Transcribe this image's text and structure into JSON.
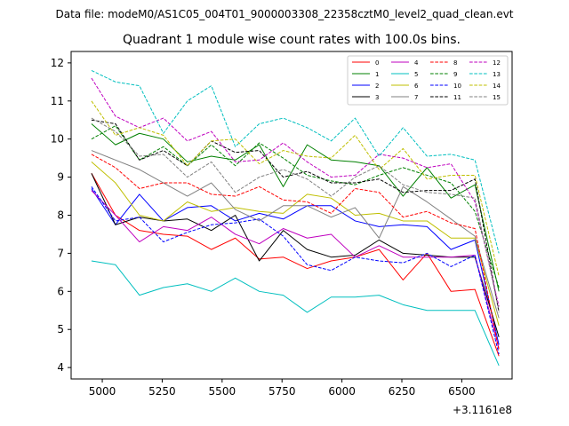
{
  "figure": {
    "suptitle": "Data file: modeM0/AS1C05_004T01_9000003308_22358cztM0_level2_quad_clean.evt",
    "x_offset_label": "+3.1161e8"
  },
  "chart_data": {
    "type": "line",
    "title": "Quadrant 1 module wise count rates with 100.0s bins.",
    "xlabel": "",
    "ylabel": "",
    "x_offset": 311610000,
    "xlim": [
      4870,
      6710
    ],
    "ylim": [
      3.7,
      12.3
    ],
    "xticks": [
      5000,
      5250,
      5500,
      5750,
      6000,
      6250,
      6500
    ],
    "yticks": [
      4,
      5,
      6,
      7,
      8,
      9,
      10,
      11,
      12
    ],
    "grid": false,
    "legend": "top-right",
    "x": [
      4955,
      5055,
      5155,
      5255,
      5355,
      5455,
      5555,
      5655,
      5755,
      5855,
      5955,
      6055,
      6155,
      6255,
      6355,
      6455,
      6555,
      6655
    ],
    "series": [
      {
        "name": "0",
        "color": "#ff0000",
        "dash": "solid",
        "values": [
          9.1,
          8.0,
          7.6,
          7.5,
          7.45,
          7.1,
          7.4,
          6.85,
          6.9,
          6.6,
          6.8,
          6.9,
          7.1,
          6.3,
          7.0,
          6.0,
          6.05,
          4.3
        ]
      },
      {
        "name": "1",
        "color": "#008000",
        "dash": "solid",
        "values": [
          10.4,
          9.85,
          10.15,
          10.0,
          9.4,
          9.55,
          9.45,
          9.85,
          8.75,
          9.85,
          9.45,
          9.4,
          9.3,
          8.5,
          9.25,
          8.45,
          8.8,
          6.0
        ]
      },
      {
        "name": "2",
        "color": "#0000ff",
        "dash": "solid",
        "values": [
          8.7,
          7.75,
          8.55,
          7.85,
          8.2,
          8.25,
          7.85,
          8.05,
          7.9,
          8.25,
          8.25,
          7.85,
          7.7,
          7.75,
          7.7,
          7.1,
          7.35,
          4.6
        ]
      },
      {
        "name": "3",
        "color": "#000000",
        "dash": "solid",
        "values": [
          9.1,
          7.75,
          7.95,
          7.85,
          7.9,
          7.6,
          8.0,
          6.8,
          7.6,
          7.1,
          6.9,
          6.95,
          7.35,
          7.0,
          6.95,
          6.9,
          6.9,
          4.8
        ]
      },
      {
        "name": "4",
        "color": "#bf00bf",
        "dash": "solid",
        "values": [
          8.65,
          8.0,
          7.3,
          7.7,
          7.6,
          7.95,
          7.5,
          7.25,
          7.65,
          7.4,
          7.5,
          6.9,
          7.2,
          6.9,
          6.9,
          6.9,
          6.95,
          4.5
        ]
      },
      {
        "name": "5",
        "color": "#00bfbf",
        "dash": "solid",
        "values": [
          6.8,
          6.7,
          5.9,
          6.1,
          6.2,
          6.0,
          6.35,
          6.0,
          5.9,
          5.45,
          5.85,
          5.85,
          5.9,
          5.65,
          5.5,
          5.5,
          5.5,
          4.05
        ]
      },
      {
        "name": "6",
        "color": "#bfbf00",
        "dash": "solid",
        "values": [
          9.4,
          8.85,
          8.0,
          7.85,
          8.35,
          8.1,
          8.2,
          8.1,
          8.05,
          8.55,
          8.45,
          8.0,
          8.05,
          7.85,
          7.85,
          7.4,
          7.4,
          5.1
        ]
      },
      {
        "name": "7",
        "color": "#808080",
        "dash": "solid",
        "values": [
          9.7,
          9.45,
          9.2,
          8.85,
          8.5,
          8.85,
          8.15,
          7.85,
          8.25,
          8.25,
          7.95,
          8.2,
          7.4,
          8.75,
          8.35,
          7.9,
          7.45,
          5.3
        ]
      },
      {
        "name": "8",
        "color": "#ff0000",
        "dash": "dashed",
        "values": [
          9.6,
          9.25,
          8.7,
          8.85,
          8.85,
          8.55,
          8.5,
          8.75,
          8.4,
          8.35,
          8.05,
          8.7,
          8.6,
          7.95,
          8.1,
          7.8,
          7.65,
          4.45
        ]
      },
      {
        "name": "9",
        "color": "#008000",
        "dash": "dashed",
        "values": [
          10.0,
          10.35,
          9.45,
          9.8,
          9.3,
          9.85,
          9.3,
          9.9,
          9.5,
          9.05,
          8.9,
          8.8,
          9.05,
          9.25,
          9.05,
          8.85,
          8.1,
          6.1
        ]
      },
      {
        "name": "10",
        "color": "#0000ff",
        "dash": "dashed",
        "values": [
          8.75,
          7.85,
          7.95,
          7.3,
          7.55,
          7.75,
          7.8,
          7.9,
          7.45,
          6.7,
          6.55,
          6.9,
          6.8,
          6.75,
          7.0,
          6.65,
          6.95,
          4.35
        ]
      },
      {
        "name": "11",
        "color": "#000000",
        "dash": "dashed",
        "values": [
          10.5,
          10.4,
          9.45,
          9.7,
          9.3,
          9.95,
          9.65,
          9.7,
          9.0,
          9.15,
          8.85,
          8.85,
          8.95,
          8.6,
          8.65,
          8.65,
          8.95,
          5.45
        ]
      },
      {
        "name": "12",
        "color": "#bf00bf",
        "dash": "dashed",
        "values": [
          11.6,
          10.6,
          10.3,
          10.55,
          9.95,
          10.2,
          9.4,
          9.45,
          9.9,
          9.4,
          9.0,
          9.05,
          9.6,
          9.5,
          9.25,
          9.35,
          8.35,
          5.6
        ]
      },
      {
        "name": "13",
        "color": "#00bfbf",
        "dash": "dashed",
        "values": [
          11.8,
          11.5,
          11.4,
          10.15,
          11.0,
          11.4,
          9.8,
          10.4,
          10.55,
          10.3,
          9.95,
          10.55,
          9.55,
          10.3,
          9.55,
          9.6,
          9.45,
          7.0
        ]
      },
      {
        "name": "14",
        "color": "#bfbf00",
        "dash": "dashed",
        "values": [
          11.0,
          10.1,
          10.3,
          10.1,
          9.3,
          9.95,
          10.0,
          9.35,
          9.7,
          9.55,
          9.5,
          10.1,
          9.2,
          9.75,
          8.95,
          9.05,
          9.05,
          6.4
        ]
      },
      {
        "name": "15",
        "color": "#808080",
        "dash": "dashed",
        "values": [
          10.55,
          10.2,
          9.55,
          9.6,
          9.0,
          9.4,
          8.6,
          9.0,
          9.2,
          8.95,
          8.5,
          9.0,
          9.3,
          8.8,
          8.6,
          8.55,
          8.45,
          5.5
        ]
      }
    ]
  }
}
